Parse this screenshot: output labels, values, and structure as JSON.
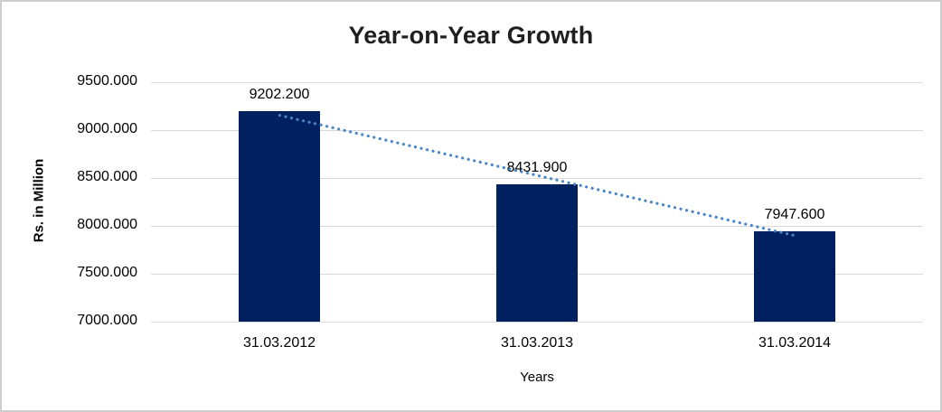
{
  "chart_data": {
    "type": "bar",
    "title": "Year-on-Year Growth",
    "xlabel": "Years",
    "ylabel": "Rs. in Million",
    "categories": [
      "31.03.2012",
      "31.03.2013",
      "31.03.2014"
    ],
    "values": [
      9202.2,
      8431.9,
      7947.6
    ],
    "data_labels": [
      "9202.200",
      "8431.900",
      "7947.600"
    ],
    "ylim": [
      7000,
      9500
    ],
    "ytick_step": 500,
    "ytick_labels": [
      "7000.000",
      "7500.000",
      "8000.000",
      "8500.000",
      "9000.000",
      "9500.000"
    ],
    "grid": true,
    "legend": "none",
    "trendline": {
      "type": "linear",
      "style": "dotted"
    },
    "colors": {
      "bar": "#002060",
      "trendline": "#4a85c8",
      "gridline": "#d9d9d9",
      "text": "#000000",
      "title_text": "#1f1f1f",
      "frame_border": "#cdcdcd",
      "background": "#ffffff"
    }
  }
}
